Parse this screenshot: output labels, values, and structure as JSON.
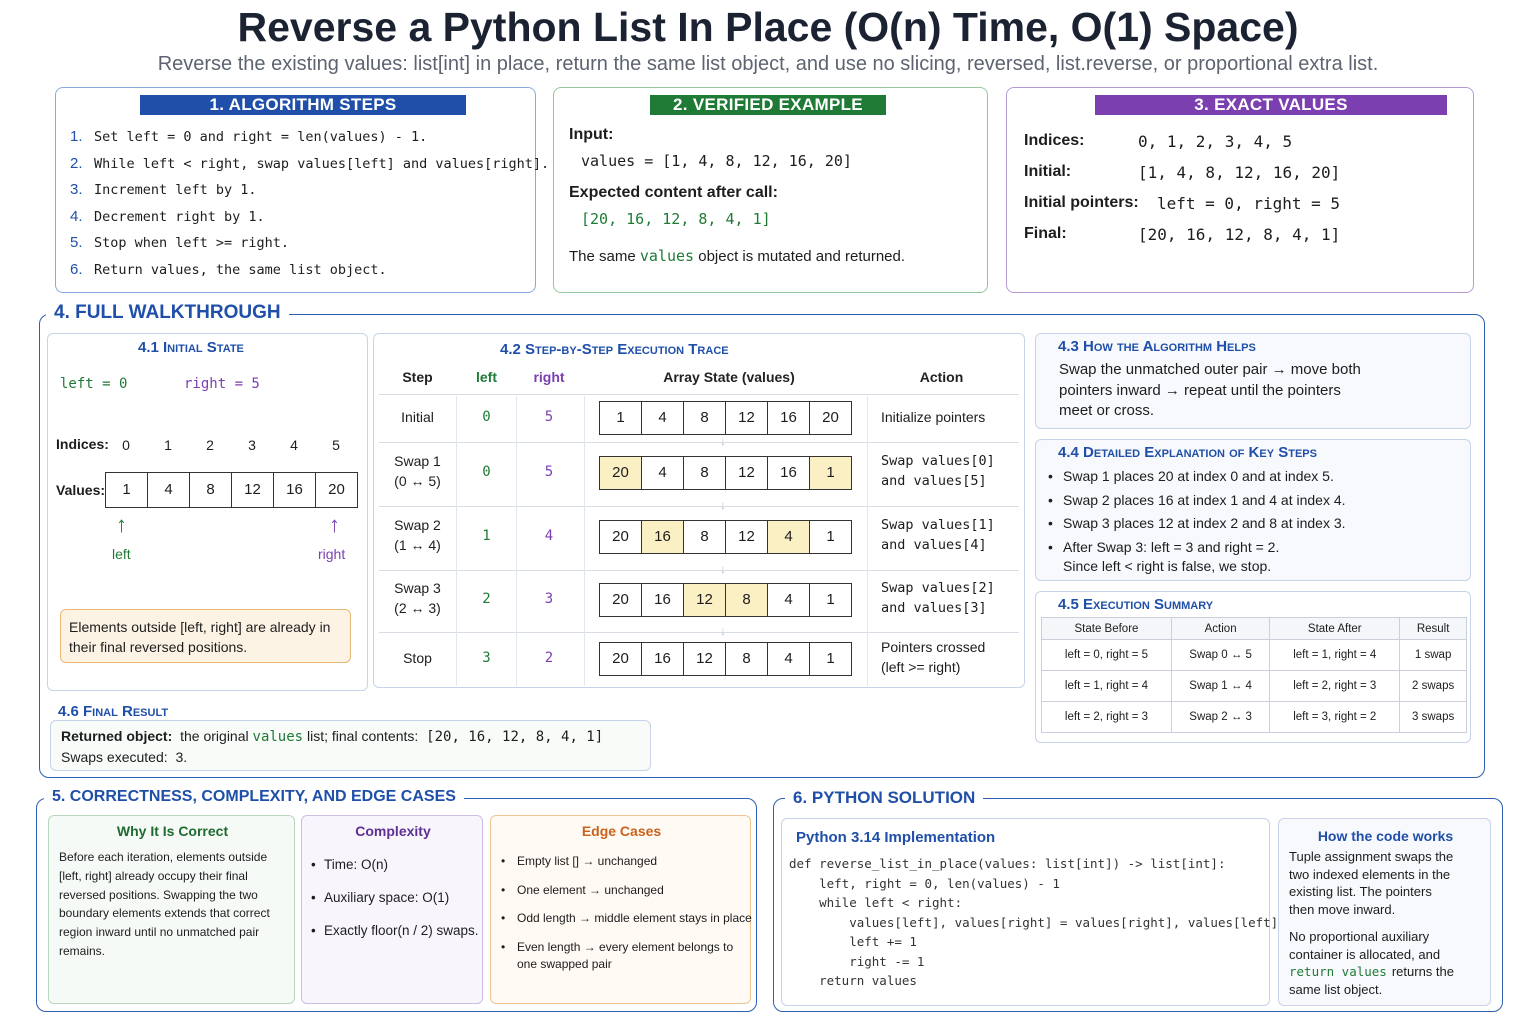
{
  "header": {
    "title": "Reverse a Python List In Place (O(n) Time, O(1) Space)",
    "subtitle": "Reverse the existing values: list[int] in place, return the same list object, and use no slicing, reversed, list.reverse, or proportional extra list."
  },
  "colors": {
    "blue": "#1f4fa8",
    "green": "#1f7a36",
    "purple": "#7b3fb0",
    "highlight": "#fbefc4",
    "orange": "#e0772a"
  },
  "steps": {
    "title": "1. ALGORITHM STEPS",
    "items": [
      {
        "num": "1.",
        "text": "Set left = 0 and right = len(values) - 1."
      },
      {
        "num": "2.",
        "text": "While left < right, swap values[left] and values[right]."
      },
      {
        "num": "3.",
        "text": "Increment left by 1."
      },
      {
        "num": "4.",
        "text": "Decrement right by 1."
      },
      {
        "num": "5.",
        "text": "Stop when left >= right."
      },
      {
        "num": "6.",
        "text": "Return values, the same list object."
      }
    ]
  },
  "example": {
    "title": "2. VERIFIED EXAMPLE",
    "input_label": "Input:",
    "input_code": "values = [1, 4, 8, 12, 16, 20]",
    "expected_label": "Expected content after call:",
    "expected_code": "[20, 16, 12, 8, 4, 1]",
    "note_pre": "The same",
    "note_code": "values",
    "note_post": "object is mutated and returned."
  },
  "exact": {
    "title": "3. EXACT VALUES",
    "rows": [
      {
        "label": "Indices:",
        "value": "0, 1, 2, 3, 4, 5"
      },
      {
        "label": "Initial:",
        "value": "[1, 4, 8, 12, 16, 20]"
      },
      {
        "label": "Initial pointers:",
        "value": "left = 0, right = 5"
      },
      {
        "label": "Final:",
        "value": "[20, 16, 12, 8, 4, 1]"
      }
    ]
  },
  "walkthrough": {
    "title": "4. FULL WALKTHROUGH",
    "initial": {
      "title": "4.1 Initial State",
      "left_label": "left = 0",
      "right_label": "right = 5",
      "indices_label": "Indices:",
      "values_label": "Values:",
      "indices": [
        "0",
        "1",
        "2",
        "3",
        "4",
        "5"
      ],
      "values": [
        "1",
        "4",
        "8",
        "12",
        "16",
        "20"
      ],
      "arrow_left": "left",
      "arrow_right": "right",
      "note": "Elements outside [left, right] are already in their final reversed positions."
    },
    "trace": {
      "title": "4.2 Step-by-Step Execution Trace",
      "headers": [
        "Step",
        "left",
        "right",
        "Array State (values)",
        "Action"
      ],
      "rows": [
        {
          "step": "Initial",
          "step2": "",
          "left": "0",
          "right": "5",
          "cells": [
            "1",
            "4",
            "8",
            "12",
            "16",
            "20"
          ],
          "hl": [],
          "action": "Initialize pointers",
          "action2": ""
        },
        {
          "step": "Swap 1",
          "step2": "(0 ↔ 5)",
          "left": "0",
          "right": "5",
          "cells": [
            "20",
            "4",
            "8",
            "12",
            "16",
            "1"
          ],
          "hl": [
            0,
            5
          ],
          "action": "Swap values[0]",
          "action2": "and values[5]"
        },
        {
          "step": "Swap 2",
          "step2": "(1 ↔ 4)",
          "left": "1",
          "right": "4",
          "cells": [
            "20",
            "16",
            "8",
            "12",
            "4",
            "1"
          ],
          "hl": [
            1,
            4
          ],
          "action": "Swap values[1]",
          "action2": "and values[4]"
        },
        {
          "step": "Swap 3",
          "step2": "(2 ↔ 3)",
          "left": "2",
          "right": "3",
          "cells": [
            "20",
            "16",
            "12",
            "8",
            "4",
            "1"
          ],
          "hl": [
            2,
            3
          ],
          "action": "Swap values[2]",
          "action2": "and values[3]"
        },
        {
          "step": "Stop",
          "step2": "",
          "left": "3",
          "right": "2",
          "cells": [
            "20",
            "16",
            "12",
            "8",
            "4",
            "1"
          ],
          "hl": [],
          "action": "Pointers crossed",
          "action2": "(left >= right)"
        }
      ]
    },
    "helps": {
      "title": "4.3 How the Algorithm Helps",
      "line1": "Swap the unmatched outer pair → move both",
      "line2": "pointers inward → repeat until the pointers",
      "line3": "meet or cross."
    },
    "detailed": {
      "title": "4.4 Detailed Explanation of Key Steps",
      "items": [
        "Swap 1 places 20 at index 0 and  at index 5.",
        "Swap 2 places 16 at index 1 and 4 at index 4.",
        "Swap 3 places 12 at index 2 and 8 at index 3.",
        "After Swap 3:  left = 3 and right = 2."
      ],
      "last_cont": "Since left < right is false, we stop."
    },
    "summary": {
      "title": "4.5 Execution Summary",
      "headers": [
        "State Before",
        "Action",
        "State After",
        "Result"
      ],
      "rows": [
        [
          "left = 0, right = 5",
          "Swap 0 ↔ 5",
          "left = 1, right = 4",
          "1 swap"
        ],
        [
          "left = 1, right = 4",
          "Swap 1 ↔ 4",
          "left = 2, right = 3",
          "2 swaps"
        ],
        [
          "left = 2, right = 3",
          "Swap 2 ↔ 3",
          "left = 3, right = 2",
          "3 swaps"
        ]
      ]
    },
    "final": {
      "title": "4.6 Final Result",
      "label1": "Returned object:",
      "text1a": "the original",
      "code1": "values",
      "text1b": "list;  final contents:",
      "code2": "[20, 16, 12, 8, 4, 1]",
      "label2": "Swaps executed:",
      "value2": "3."
    }
  },
  "correctness": {
    "title": "5. CORRECTNESS, COMPLEXITY, AND EDGE CASES",
    "why_title": "Why It Is Correct",
    "why_lines": [
      "Before each iteration, elements outside",
      "[left, right] already occupy their final",
      "reversed positions. Swapping the two",
      "boundary elements extends that correct",
      "region inward until no unmatched pair",
      "remains."
    ],
    "complexity_title": "Complexity",
    "complexity_items": [
      "Time:  O(n)",
      "Auxiliary space:  O(1)",
      "Exactly floor(n / 2) swaps."
    ],
    "edge_title": "Edge Cases",
    "edge_items": [
      "Empty list  []  →  unchanged",
      "One element  →  unchanged",
      "Odd length → middle element stays in place",
      "Even length  →  every element belongs to"
    ],
    "edge_cont": "one swapped pair"
  },
  "solution": {
    "title": "6. PYTHON SOLUTION",
    "impl_title": "Python 3.14 Implementation",
    "code_lines": [
      "def reverse_list_in_place(values: list[int]) -> list[int]:",
      "    left, right = 0, len(values) - 1",
      "    while left < right:",
      "        values[left], values[right] = values[right], values[left]",
      "        left += 1",
      "        right -= 1",
      "    return values"
    ],
    "how_title": "How the code works",
    "how_p1": [
      "Tuple assignment swaps the",
      "two indexed elements in the",
      "existing list. The pointers",
      "then move inward."
    ],
    "how_p2a": [
      "No proportional auxiliary",
      "container is allocated, and"
    ],
    "how_code": "return values",
    "how_p2b_tail": "returns the",
    "how_p2c": "same list object."
  }
}
